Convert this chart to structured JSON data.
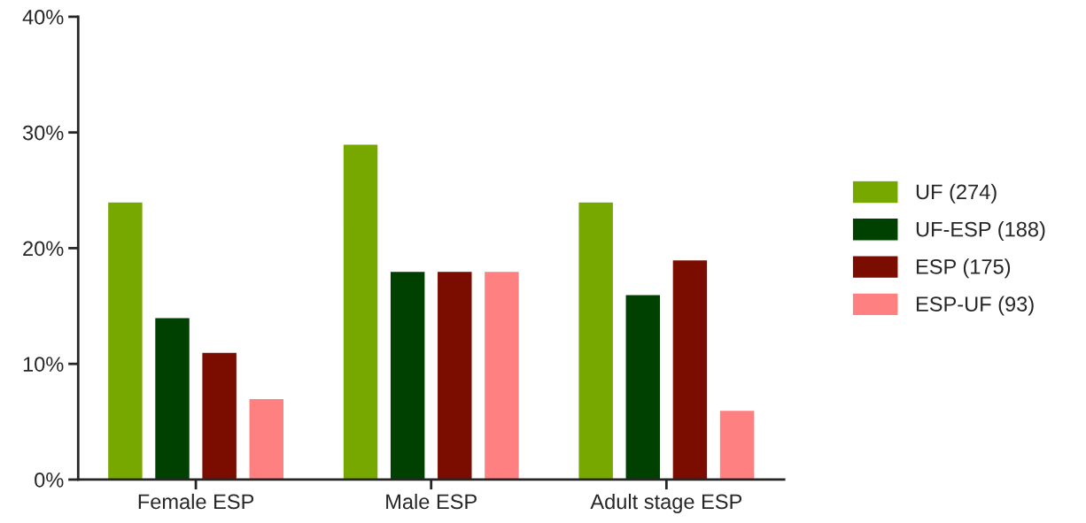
{
  "chart_data": {
    "type": "bar",
    "categories": [
      "Female ESP",
      "Male ESP",
      "Adult stage ESP"
    ],
    "series": [
      {
        "name": "UF (274)",
        "color": "#77a800",
        "values": [
          24,
          29,
          24
        ]
      },
      {
        "name": "UF-ESP (188)",
        "color": "#004000",
        "values": [
          14,
          18,
          16
        ]
      },
      {
        "name": "ESP (175)",
        "color": "#7a0c00",
        "values": [
          11,
          18,
          19
        ]
      },
      {
        "name": "ESP-UF (93)",
        "color": "#ff8080",
        "values": [
          7,
          18,
          6
        ]
      }
    ],
    "ylim": [
      0,
      40
    ],
    "yticks": [
      {
        "value": 0,
        "label": "0%"
      },
      {
        "value": 10,
        "label": "10%"
      },
      {
        "value": 20,
        "label": "20%"
      },
      {
        "value": 30,
        "label": "30%"
      },
      {
        "value": 40,
        "label": "40%"
      }
    ],
    "legend": "right"
  }
}
